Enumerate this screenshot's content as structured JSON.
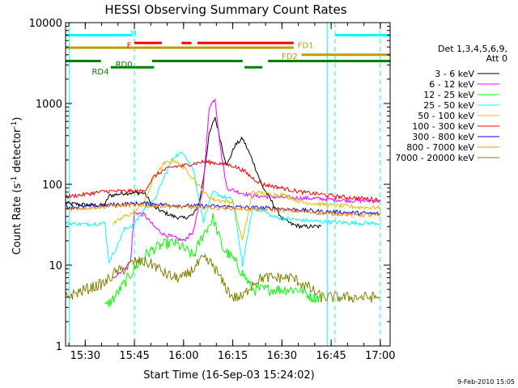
{
  "chart_data": {
    "type": "line",
    "title": "HESSI Observing Summary Count Rates",
    "xlabel": "Start Time (16-Sep-03 15:24:02)",
    "ylabel": "Count Rate (s",
    "ylabel_sup": "-1",
    "ylabel_mid": " detector",
    "ylabel_end": ")",
    "footer": "9-Feb-2010 15:05",
    "xlim": [
      15.4,
      17.05
    ],
    "ylim": [
      1,
      10000
    ],
    "yscale": "log",
    "x_ticks": [
      {
        "v": 15.5,
        "label": "15:30"
      },
      {
        "v": 15.75,
        "label": "15:45"
      },
      {
        "v": 16.0,
        "label": "16:00"
      },
      {
        "v": 16.25,
        "label": "16:15"
      },
      {
        "v": 16.5,
        "label": "16:30"
      },
      {
        "v": 16.75,
        "label": "16:45"
      },
      {
        "v": 17.0,
        "label": "17:00"
      }
    ],
    "y_ticks": [
      {
        "v": 1,
        "label": "1"
      },
      {
        "v": 10,
        "label": "10"
      },
      {
        "v": 100,
        "label": "100"
      },
      {
        "v": 1000,
        "label": "1000"
      },
      {
        "v": 10000,
        "label": "10000"
      }
    ],
    "legend": {
      "title1": "Det 1,3,4,5,6,9,",
      "title2": "Att 0",
      "position": "right"
    },
    "series": [
      {
        "name": "3 - 6 keV",
        "color": "#000000",
        "points": [
          [
            15.4,
            58
          ],
          [
            15.55,
            55
          ],
          [
            15.6,
            55
          ],
          [
            15.62,
            72
          ],
          [
            15.7,
            78
          ],
          [
            15.8,
            78
          ],
          [
            15.85,
            52
          ],
          [
            15.9,
            45
          ],
          [
            15.95,
            40
          ],
          [
            16.0,
            38
          ],
          [
            16.05,
            42
          ],
          [
            16.08,
            60
          ],
          [
            16.1,
            115
          ],
          [
            16.13,
            410
          ],
          [
            16.16,
            680
          ],
          [
            16.2,
            260
          ],
          [
            16.22,
            170
          ],
          [
            16.26,
            300
          ],
          [
            16.3,
            370
          ],
          [
            16.35,
            200
          ],
          [
            16.4,
            95
          ],
          [
            16.45,
            60
          ],
          [
            16.5,
            38
          ],
          [
            16.55,
            32
          ],
          [
            16.6,
            30
          ],
          [
            16.65,
            30
          ],
          [
            16.7,
            30
          ]
        ]
      },
      {
        "name": "6 - 12 keV",
        "color": "#ff00ff",
        "points": [
          [
            15.64,
            7
          ],
          [
            15.7,
            9
          ],
          [
            15.73,
            11
          ],
          [
            15.75,
            45
          ],
          [
            15.8,
            42
          ],
          [
            15.85,
            30
          ],
          [
            15.9,
            24
          ],
          [
            15.95,
            22
          ],
          [
            16.0,
            20
          ],
          [
            16.05,
            26
          ],
          [
            16.1,
            90
          ],
          [
            16.13,
            900
          ],
          [
            16.16,
            1150
          ],
          [
            16.19,
            250
          ],
          [
            16.22,
            90
          ],
          [
            16.28,
            80
          ],
          [
            16.35,
            72
          ],
          [
            16.45,
            70
          ],
          [
            16.55,
            68
          ],
          [
            16.65,
            67
          ],
          [
            16.75,
            65
          ],
          [
            16.85,
            63
          ],
          [
            17.0,
            62
          ]
        ]
      },
      {
        "name": "12 - 25 keV",
        "color": "#00ff00",
        "points": [
          [
            15.6,
            3
          ],
          [
            15.65,
            4
          ],
          [
            15.7,
            6
          ],
          [
            15.75,
            9
          ],
          [
            15.8,
            13
          ],
          [
            15.85,
            16
          ],
          [
            15.9,
            18
          ],
          [
            15.95,
            19
          ],
          [
            16.0,
            16
          ],
          [
            16.05,
            13
          ],
          [
            16.1,
            24
          ],
          [
            16.15,
            38
          ],
          [
            16.2,
            16
          ],
          [
            16.25,
            12
          ],
          [
            16.3,
            8
          ],
          [
            16.35,
            5
          ],
          [
            16.4,
            5
          ],
          [
            16.45,
            5
          ],
          [
            16.5,
            5
          ],
          [
            16.55,
            5
          ],
          [
            16.6,
            5
          ],
          [
            16.65,
            4
          ],
          [
            16.7,
            4
          ]
        ]
      },
      {
        "name": "25 - 50 keV",
        "color": "#00ffff",
        "points": [
          [
            15.4,
            33
          ],
          [
            15.5,
            32
          ],
          [
            15.6,
            33
          ],
          [
            15.62,
            11
          ],
          [
            15.65,
            15
          ],
          [
            15.7,
            28
          ],
          [
            15.75,
            32
          ],
          [
            15.8,
            50
          ],
          [
            15.85,
            62
          ],
          [
            15.9,
            120
          ],
          [
            15.95,
            220
          ],
          [
            16.0,
            250
          ],
          [
            16.05,
            150
          ],
          [
            16.1,
            35
          ],
          [
            16.15,
            80
          ],
          [
            16.2,
            70
          ],
          [
            16.25,
            65
          ],
          [
            16.3,
            10
          ],
          [
            16.35,
            50
          ],
          [
            16.4,
            48
          ],
          [
            16.45,
            40
          ],
          [
            16.5,
            38
          ],
          [
            16.6,
            36
          ],
          [
            16.75,
            34
          ],
          [
            16.9,
            33
          ],
          [
            17.0,
            33
          ]
        ]
      },
      {
        "name": "50 - 100 keV",
        "color": "#e0c000",
        "points": [
          [
            15.64,
            32
          ],
          [
            15.7,
            40
          ],
          [
            15.75,
            45
          ],
          [
            15.8,
            60
          ],
          [
            15.85,
            120
          ],
          [
            15.9,
            180
          ],
          [
            15.95,
            200
          ],
          [
            16.0,
            160
          ],
          [
            16.05,
            120
          ],
          [
            16.1,
            80
          ],
          [
            16.15,
            65
          ],
          [
            16.2,
            62
          ],
          [
            16.25,
            60
          ],
          [
            16.3,
            20
          ],
          [
            16.35,
            80
          ],
          [
            16.4,
            78
          ],
          [
            16.45,
            75
          ],
          [
            16.5,
            75
          ],
          [
            16.6,
            60
          ],
          [
            16.75,
            55
          ],
          [
            16.9,
            52
          ],
          [
            17.0,
            51
          ]
        ]
      },
      {
        "name": "100 - 300 keV",
        "color": "#ff0000",
        "points": [
          [
            15.4,
            70
          ],
          [
            15.5,
            75
          ],
          [
            15.6,
            82
          ],
          [
            15.7,
            82
          ],
          [
            15.8,
            82
          ],
          [
            15.85,
            125
          ],
          [
            15.9,
            150
          ],
          [
            15.95,
            165
          ],
          [
            16.0,
            170
          ],
          [
            16.05,
            180
          ],
          [
            16.1,
            190
          ],
          [
            16.15,
            185
          ],
          [
            16.2,
            178
          ],
          [
            16.25,
            170
          ],
          [
            16.3,
            150
          ],
          [
            16.35,
            120
          ],
          [
            16.4,
            100
          ],
          [
            16.45,
            95
          ],
          [
            16.5,
            90
          ],
          [
            16.6,
            80
          ],
          [
            16.7,
            75
          ],
          [
            16.8,
            70
          ],
          [
            16.9,
            67
          ],
          [
            17.0,
            65
          ]
        ]
      },
      {
        "name": "300 - 800 keV",
        "color": "#0000ff",
        "points": [
          [
            15.4,
            52
          ],
          [
            15.5,
            53
          ],
          [
            15.6,
            55
          ],
          [
            15.7,
            57
          ],
          [
            15.8,
            58
          ],
          [
            15.9,
            56
          ],
          [
            16.0,
            54
          ],
          [
            16.1,
            54
          ],
          [
            16.2,
            53
          ],
          [
            16.3,
            52
          ],
          [
            16.4,
            51
          ],
          [
            16.5,
            50
          ],
          [
            16.6,
            48
          ],
          [
            16.7,
            46
          ],
          [
            16.8,
            45
          ],
          [
            16.9,
            44
          ],
          [
            17.0,
            43
          ]
        ]
      },
      {
        "name": "800 - 7000 keV",
        "color": "#ff8c00",
        "points": [
          [
            15.4,
            50
          ],
          [
            15.5,
            51
          ],
          [
            15.6,
            53
          ],
          [
            15.7,
            55
          ],
          [
            15.8,
            55
          ],
          [
            15.9,
            54
          ],
          [
            16.0,
            52
          ],
          [
            16.1,
            52
          ],
          [
            16.2,
            51
          ],
          [
            16.3,
            50
          ],
          [
            16.4,
            49
          ],
          [
            16.5,
            48
          ],
          [
            16.6,
            46
          ],
          [
            16.7,
            44
          ],
          [
            16.8,
            43
          ],
          [
            16.9,
            42
          ],
          [
            17.0,
            41
          ]
        ]
      },
      {
        "name": "7000 - 20000 keV",
        "color": "#808000",
        "points": [
          [
            15.4,
            4
          ],
          [
            15.5,
            5
          ],
          [
            15.6,
            6
          ],
          [
            15.65,
            8
          ],
          [
            15.7,
            9
          ],
          [
            15.75,
            11
          ],
          [
            15.8,
            11
          ],
          [
            15.85,
            10
          ],
          [
            15.9,
            8
          ],
          [
            15.95,
            7
          ],
          [
            16.0,
            7
          ],
          [
            16.05,
            9
          ],
          [
            16.1,
            12
          ],
          [
            16.15,
            10
          ],
          [
            16.2,
            6
          ],
          [
            16.25,
            4
          ],
          [
            16.3,
            4
          ],
          [
            16.35,
            6
          ],
          [
            16.4,
            7
          ],
          [
            16.45,
            7
          ],
          [
            16.5,
            7
          ],
          [
            16.55,
            7
          ],
          [
            16.6,
            6
          ],
          [
            16.65,
            5
          ],
          [
            16.7,
            4
          ],
          [
            16.8,
            4
          ],
          [
            16.9,
            4
          ],
          [
            17.0,
            4
          ]
        ]
      }
    ],
    "flags": [
      {
        "label": "N",
        "color": "#00ffff",
        "segments": [
          [
            15.4,
            15.74
          ],
          [
            16.77,
            17.05
          ]
        ],
        "y": 7000
      },
      {
        "label": "F",
        "color": "#ff0000",
        "segments": [
          [
            15.75,
            15.89
          ],
          [
            15.99,
            16.04
          ],
          [
            16.07,
            16.56
          ]
        ],
        "y": 5600
      },
      {
        "label": "FD1",
        "color": "#b8a000",
        "segments": [
          [
            15.4,
            16.56
          ]
        ],
        "y": 4900
      },
      {
        "label": "FD2",
        "color": "#b8a000",
        "segments": [
          [
            16.6,
            17.05
          ]
        ],
        "y": 4000
      },
      {
        "label": "RD0",
        "color": "#008000",
        "segments": [
          [
            15.4,
            15.58
          ],
          [
            15.84,
            16.3
          ],
          [
            16.43,
            17.05
          ]
        ],
        "y": 3350
      },
      {
        "label": "RD4",
        "color": "#008000",
        "segments": [
          [
            15.63,
            15.85
          ],
          [
            16.31,
            16.4
          ]
        ],
        "y": 2800
      }
    ],
    "vlines": [
      {
        "v": 15.42,
        "color": "#00ffff",
        "style": "solid"
      },
      {
        "v": 15.75,
        "color": "#00ffff",
        "style": "dashed"
      },
      {
        "v": 16.73,
        "color": "#00ffff",
        "style": "solid"
      },
      {
        "v": 16.77,
        "color": "#00ffff",
        "style": "dashed"
      },
      {
        "v": 17.0,
        "color": "#00ffff",
        "style": "dashed"
      }
    ],
    "grid": false
  }
}
